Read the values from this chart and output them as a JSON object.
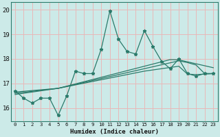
{
  "xlabel": "Humidex (Indice chaleur)",
  "xlim": [
    -0.5,
    23.5
  ],
  "ylim": [
    15.45,
    20.3
  ],
  "yticks": [
    16,
    17,
    18,
    19,
    20
  ],
  "xticks": [
    0,
    1,
    2,
    3,
    4,
    5,
    6,
    7,
    8,
    9,
    10,
    11,
    12,
    13,
    14,
    15,
    16,
    17,
    18,
    19,
    20,
    21,
    22,
    23
  ],
  "bg_color": "#cceae8",
  "grid_color": "#e8b8b8",
  "line_color": "#2a7a6a",
  "main_y": [
    16.7,
    16.4,
    16.2,
    16.4,
    16.4,
    15.7,
    16.5,
    17.5,
    17.4,
    17.4,
    18.4,
    19.95,
    18.8,
    18.3,
    18.2,
    19.15,
    18.5,
    17.9,
    17.6,
    18.0,
    17.4,
    17.3,
    17.4,
    17.4
  ],
  "reg1_y": [
    16.65,
    16.68,
    16.71,
    16.74,
    16.77,
    16.8,
    16.87,
    16.94,
    17.01,
    17.08,
    17.15,
    17.22,
    17.29,
    17.36,
    17.43,
    17.5,
    17.55,
    17.6,
    17.65,
    17.7,
    17.38,
    17.36,
    17.38,
    17.4
  ],
  "reg2_y": [
    16.6,
    16.64,
    16.68,
    16.72,
    16.76,
    16.8,
    16.88,
    16.96,
    17.04,
    17.12,
    17.2,
    17.28,
    17.36,
    17.44,
    17.52,
    17.6,
    17.68,
    17.76,
    17.84,
    17.92,
    17.85,
    17.75,
    17.4,
    17.4
  ],
  "reg3_y": [
    16.55,
    16.6,
    16.65,
    16.7,
    16.75,
    16.8,
    16.89,
    16.98,
    17.07,
    17.16,
    17.25,
    17.34,
    17.43,
    17.52,
    17.61,
    17.7,
    17.79,
    17.88,
    17.97,
    17.96,
    17.88,
    17.8,
    17.72,
    17.64
  ]
}
